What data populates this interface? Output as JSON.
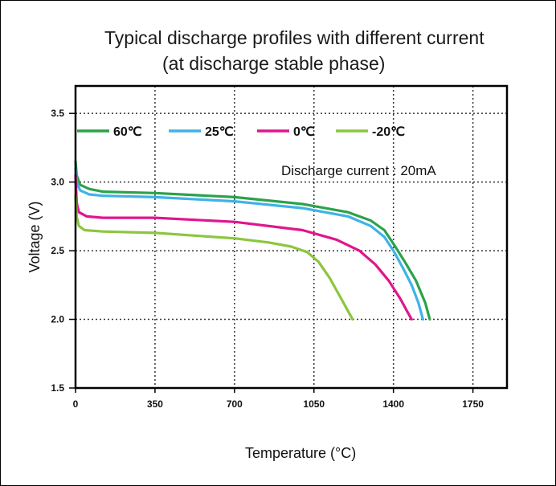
{
  "chart_data": {
    "type": "line",
    "title": "Typical discharge profiles with different current",
    "subtitle": "(at discharge stable phase)",
    "xlabel": "Temperature (°C)",
    "ylabel": "Voltage (V)",
    "xlim": [
      0,
      1900
    ],
    "ylim": [
      1.5,
      3.7
    ],
    "x_ticks": [
      "0",
      "350",
      "700",
      "1050",
      "1400",
      "1750"
    ],
    "y_ticks": [
      "1.5",
      "2.0",
      "2.5",
      "3.0",
      "3.5"
    ],
    "x_tick_values": [
      0,
      350,
      700,
      1050,
      1400,
      1750
    ],
    "y_tick_values": [
      1.5,
      2.0,
      2.5,
      3.0,
      3.5
    ],
    "grid": true,
    "legend_position": "top",
    "annotation": "Discharge current : 20mA",
    "series": [
      {
        "name": "60℃",
        "color": "#2ca24a",
        "points": [
          [
            0,
            3.15
          ],
          [
            5,
            3.05
          ],
          [
            20,
            2.98
          ],
          [
            60,
            2.95
          ],
          [
            120,
            2.93
          ],
          [
            350,
            2.92
          ],
          [
            700,
            2.89
          ],
          [
            1000,
            2.84
          ],
          [
            1200,
            2.78
          ],
          [
            1300,
            2.72
          ],
          [
            1360,
            2.65
          ],
          [
            1400,
            2.55
          ],
          [
            1450,
            2.42
          ],
          [
            1500,
            2.28
          ],
          [
            1540,
            2.12
          ],
          [
            1560,
            2.0
          ]
        ]
      },
      {
        "name": "25℃",
        "color": "#3fb2e9",
        "points": [
          [
            0,
            3.1
          ],
          [
            5,
            3.0
          ],
          [
            20,
            2.94
          ],
          [
            60,
            2.91
          ],
          [
            120,
            2.9
          ],
          [
            350,
            2.89
          ],
          [
            700,
            2.86
          ],
          [
            1000,
            2.81
          ],
          [
            1200,
            2.75
          ],
          [
            1300,
            2.68
          ],
          [
            1360,
            2.6
          ],
          [
            1400,
            2.5
          ],
          [
            1440,
            2.38
          ],
          [
            1480,
            2.25
          ],
          [
            1510,
            2.12
          ],
          [
            1530,
            2.0
          ]
        ]
      },
      {
        "name": "0℃",
        "color": "#e0168c",
        "points": [
          [
            0,
            3.05
          ],
          [
            5,
            2.85
          ],
          [
            15,
            2.78
          ],
          [
            50,
            2.75
          ],
          [
            120,
            2.74
          ],
          [
            350,
            2.74
          ],
          [
            700,
            2.71
          ],
          [
            1000,
            2.65
          ],
          [
            1150,
            2.58
          ],
          [
            1250,
            2.5
          ],
          [
            1320,
            2.4
          ],
          [
            1380,
            2.28
          ],
          [
            1430,
            2.15
          ],
          [
            1460,
            2.06
          ],
          [
            1480,
            2.0
          ]
        ]
      },
      {
        "name": "-20℃",
        "color": "#8cc63f",
        "points": [
          [
            0,
            2.9
          ],
          [
            5,
            2.75
          ],
          [
            15,
            2.68
          ],
          [
            40,
            2.65
          ],
          [
            120,
            2.64
          ],
          [
            350,
            2.63
          ],
          [
            700,
            2.59
          ],
          [
            850,
            2.56
          ],
          [
            950,
            2.53
          ],
          [
            1020,
            2.49
          ],
          [
            1070,
            2.42
          ],
          [
            1120,
            2.3
          ],
          [
            1170,
            2.15
          ],
          [
            1200,
            2.06
          ],
          [
            1220,
            2.0
          ]
        ]
      }
    ]
  }
}
